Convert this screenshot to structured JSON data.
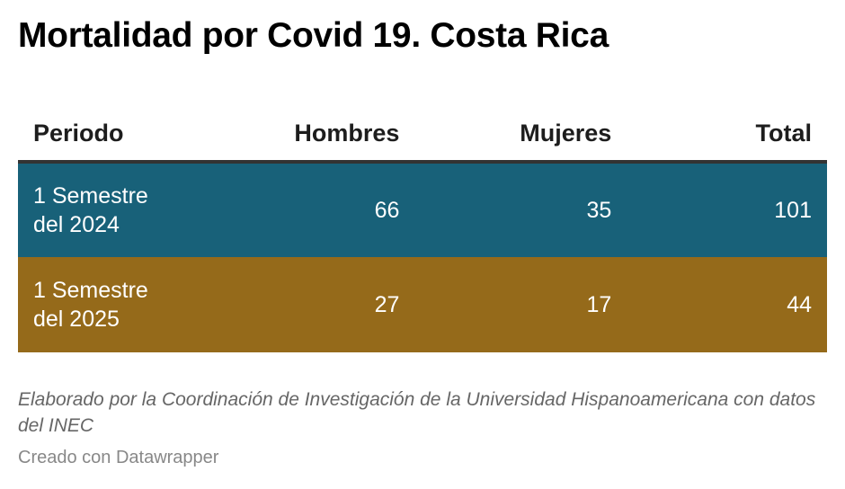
{
  "title": "Mortalidad por Covid 19. Costa Rica",
  "table": {
    "headers": [
      "Periodo",
      "Hombres",
      "Mujeres",
      "Total"
    ],
    "rows": [
      {
        "periodo_line1": "1 Semestre",
        "periodo_line2": "del 2024",
        "hombres": "66",
        "mujeres": "35",
        "total": "101",
        "color": "#186179"
      },
      {
        "periodo_line1": "1 Semestre",
        "periodo_line2": "del 2025",
        "hombres": "27",
        "mujeres": "17",
        "total": "44",
        "color": "#956a1a"
      }
    ]
  },
  "notes": "Elaborado por la Coordinación de Investigación de la Universidad Hispanoamericana con datos del INEC",
  "credit": "Creado con Datawrapper",
  "chart_data": {
    "type": "table",
    "title": "Mortalidad por Covid 19. Costa Rica",
    "columns": [
      "Periodo",
      "Hombres",
      "Mujeres",
      "Total"
    ],
    "rows": [
      [
        "1 Semestre del 2024",
        66,
        35,
        101
      ],
      [
        "1 Semestre del 2025",
        27,
        17,
        44
      ]
    ],
    "row_colors": [
      "#186179",
      "#956a1a"
    ],
    "notes": "Elaborado por la Coordinación de Investigación de la Universidad Hispanoamericana con datos del INEC",
    "credit": "Creado con Datawrapper"
  }
}
